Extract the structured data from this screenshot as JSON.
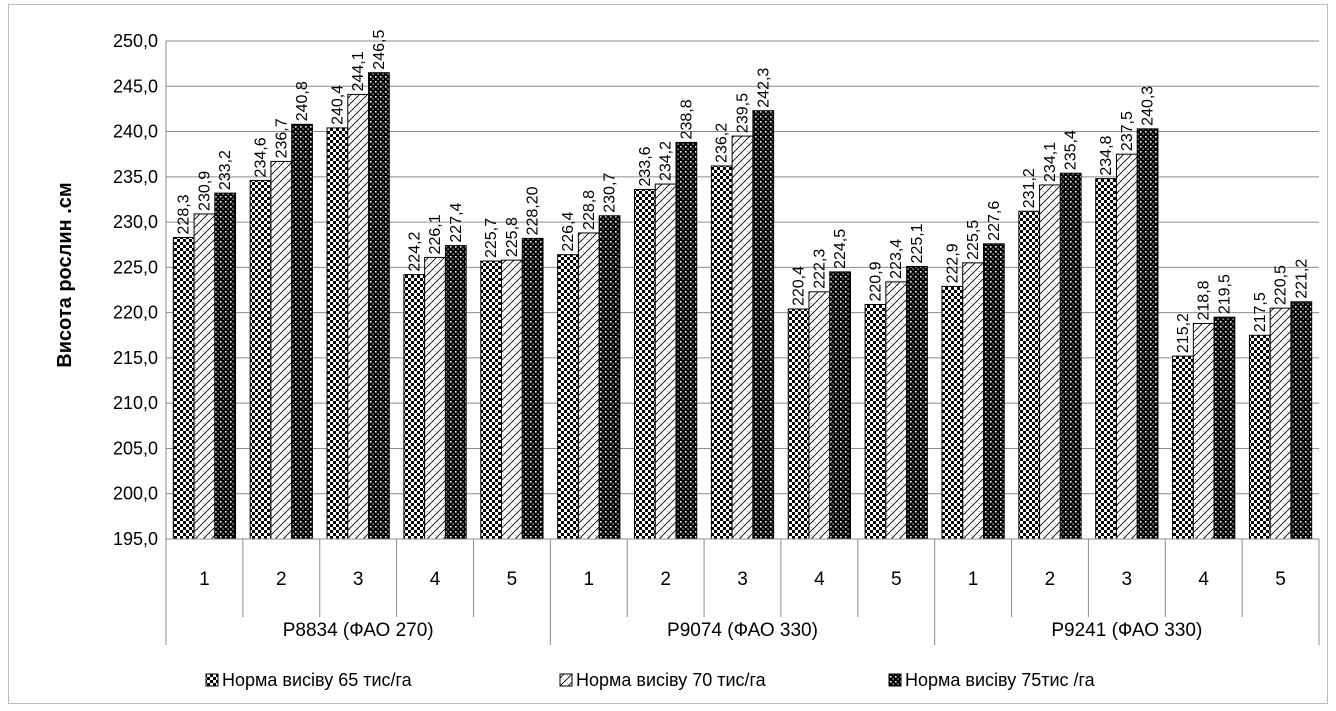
{
  "chart_data": {
    "type": "bar",
    "ylabel": "Висота рослин .см",
    "ylim": [
      195.0,
      250.0
    ],
    "ytick_step": 5,
    "yticks": [
      "195,0",
      "200,0",
      "205,0",
      "210,0",
      "215,0",
      "220,0",
      "225,0",
      "230,0",
      "235,0",
      "240,0",
      "245,0",
      "250,0"
    ],
    "grid": true,
    "legend_position": "bottom",
    "categories": [
      "1",
      "2",
      "3",
      "4",
      "5",
      "1",
      "2",
      "3",
      "4",
      "5",
      "1",
      "2",
      "3",
      "4",
      "5"
    ],
    "groups": [
      {
        "label": "P8834 (ФАО 270)",
        "size": 5
      },
      {
        "label": "P9074 (ФАО 330)",
        "size": 5
      },
      {
        "label": "P9241 (ФАО 330)",
        "size": 5
      }
    ],
    "series": [
      {
        "name": "Норма висіву 65 тис/га",
        "pattern": "checker",
        "values": [
          228.3,
          234.6,
          240.4,
          224.2,
          225.7,
          226.4,
          233.6,
          236.2,
          220.4,
          220.9,
          222.9,
          231.2,
          234.8,
          215.2,
          217.5
        ],
        "labels": [
          "228,3",
          "234,6",
          "240,4",
          "224,2",
          "225,7",
          "226,4",
          "233,6",
          "236,2",
          "220,4",
          "220,9",
          "222,9",
          "231,2",
          "234,8",
          "215,2",
          "217,5"
        ]
      },
      {
        "name": "Норма висіву 70 тис/га",
        "pattern": "diagonal",
        "values": [
          230.9,
          236.7,
          244.1,
          226.1,
          225.8,
          228.8,
          234.2,
          239.5,
          222.3,
          223.4,
          225.5,
          234.1,
          237.5,
          218.8,
          220.5
        ],
        "labels": [
          "230,9",
          "236,7",
          "244,1",
          "226,1",
          "225,8",
          "228,8",
          "234,2",
          "239,5",
          "222,3",
          "223,4",
          "225,5",
          "234,1",
          "237,5",
          "218,8",
          "220,5"
        ]
      },
      {
        "name": "Норма висіву 75тис /га",
        "pattern": "dense",
        "values": [
          233.2,
          240.8,
          246.5,
          227.4,
          228.2,
          230.7,
          238.8,
          242.3,
          224.5,
          225.1,
          227.6,
          235.4,
          240.3,
          219.5,
          221.2
        ],
        "labels": [
          "233,2",
          "240,8",
          "246,5",
          "227,4",
          "228,20",
          "230,7",
          "238,8",
          "242,3",
          "224,5",
          "225,1",
          "227,6",
          "235,4",
          "240,3",
          "219,5",
          "221,2"
        ]
      }
    ]
  }
}
